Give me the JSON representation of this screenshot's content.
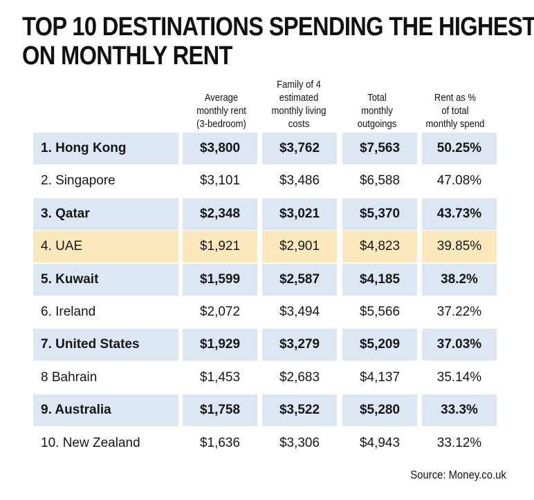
{
  "title_line1": "TOP 10 DESTINATIONS SPENDING THE HIGHEST",
  "title_line2": "ON MONTHLY RENT",
  "headers": [
    [
      "Average",
      "monthly rent",
      "(3-bedroom)"
    ],
    [
      "Family of 4",
      "estimated",
      "monthly living",
      "costs"
    ],
    [
      "Total",
      "monthly",
      "outgoings"
    ],
    [
      "Rent as %",
      "of total",
      "monthly spend"
    ]
  ],
  "source": "Source: Money.co.uk",
  "colors": {
    "blue_band": "#dce7f3",
    "highlight": "#fbe9bd",
    "text": "#161616"
  },
  "chart_data": {
    "type": "table",
    "title": "TOP 10 DESTINATIONS SPENDING THE HIGHEST ON MONTHLY RENT",
    "columns": [
      "Average monthly rent (3-bedroom)",
      "Family of 4 estimated monthly living costs",
      "Total monthly outgoings",
      "Rent as % of total monthly spend"
    ],
    "rows": [
      {
        "name": "1. Hong Kong",
        "values": [
          "$3,800",
          "$3,762",
          "$7,563",
          "50.25%"
        ],
        "style": "shaded"
      },
      {
        "name": "2. Singapore",
        "values": [
          "$3,101",
          "$3,486",
          "$6,588",
          "47.08%"
        ],
        "style": "plain"
      },
      {
        "name": "3. Qatar",
        "values": [
          "$2,348",
          "$3,021",
          "$5,370",
          "43.73%"
        ],
        "style": "shaded"
      },
      {
        "name": "4. UAE",
        "values": [
          "$1,921",
          "$2,901",
          "$4,823",
          "39.85%"
        ],
        "style": "highlight"
      },
      {
        "name": "5. Kuwait",
        "values": [
          "$1,599",
          "$2,587",
          "$4,185",
          "38.2%"
        ],
        "style": "shaded"
      },
      {
        "name": "6. Ireland",
        "values": [
          "$2,072",
          "$3,494",
          "$5,566",
          "37.22%"
        ],
        "style": "plain"
      },
      {
        "name": "7. United States",
        "values": [
          "$1,929",
          "$3,279",
          "$5,209",
          "37.03%"
        ],
        "style": "shaded"
      },
      {
        "name": "8 Bahrain",
        "values": [
          "$1,453",
          "$2,683",
          "$4,137",
          "35.14%"
        ],
        "style": "plain"
      },
      {
        "name": "9. Australia",
        "values": [
          "$1,758",
          "$3,522",
          "$5,280",
          "33.3%"
        ],
        "style": "shaded"
      },
      {
        "name": "10. New Zealand",
        "values": [
          "$1,636",
          "$3,306",
          "$4,943",
          "33.12%"
        ],
        "style": "plain"
      }
    ]
  }
}
